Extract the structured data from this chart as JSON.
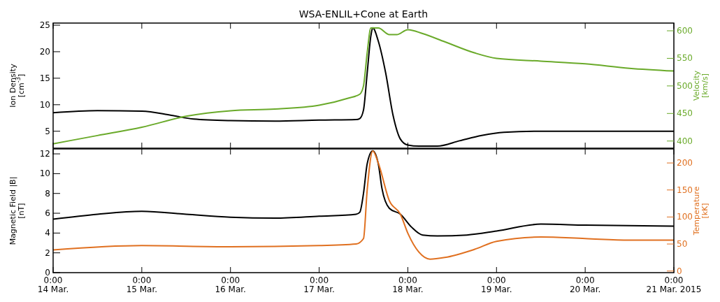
{
  "chart_data": [
    {
      "type": "line",
      "title": "WSA-ENLIL+Cone at Earth",
      "ylabel": "Ion Density\n[cm$^{-3}$]",
      "y2label": "Velocity\n[km/s]",
      "tick_labels": "y",
      "grid": false,
      "xlim": [
        "2015-03-14T00:00",
        "2015-03-21T00:00"
      ],
      "xticks": [
        {
          "value": "2015-03-14T00:00",
          "label": null
        },
        {
          "value": "2015-03-15T00:00",
          "label": null
        },
        {
          "value": "2015-03-16T00:00",
          "label": null
        },
        {
          "value": "2015-03-17T00:00",
          "label": null
        },
        {
          "value": "2015-03-18T00:00",
          "label": null
        },
        {
          "value": "2015-03-19T00:00",
          "label": null
        },
        {
          "value": "2015-03-20T00:00",
          "label": null
        },
        {
          "value": "2015-03-21T00:00",
          "label": null
        }
      ],
      "ylim": [
        1.8,
        25.4
      ],
      "yticks": [
        5,
        10,
        15,
        20,
        25
      ],
      "y2lim": [
        387,
        614
      ],
      "y2ticks": [
        400,
        450,
        500,
        550,
        600
      ],
      "series": [
        {
          "color": "#000000",
          "axis": "y",
          "x": [
            "2015-03-14T00:00",
            "2015-03-14T12:00",
            "2015-03-15T00:00",
            "2015-03-15T08:00",
            "2015-03-15T14:00",
            "2015-03-16T00:00",
            "2015-03-16T12:00",
            "2015-03-17T00:00",
            "2015-03-17T10:00",
            "2015-03-17T11:00",
            "2015-03-17T12:00",
            "2015-03-17T13:00",
            "2015-03-17T14:00",
            "2015-03-17T14:30",
            "2015-03-17T16:00",
            "2015-03-17T18:00",
            "2015-03-17T20:00",
            "2015-03-17T22:00",
            "2015-03-18T00:00",
            "2015-03-18T03:00",
            "2015-03-18T08:00",
            "2015-03-18T14:00",
            "2015-03-18T20:00",
            "2015-03-19T02:00",
            "2015-03-19T12:00",
            "2015-03-20T00:00",
            "2015-03-21T00:00"
          ],
          "values": [
            8.5,
            8.9,
            8.8,
            8.0,
            7.3,
            7.0,
            6.9,
            7.1,
            7.2,
            7.4,
            9,
            16,
            23,
            24.5,
            22,
            16,
            8,
            3.5,
            2.4,
            2.2,
            2.2,
            3.2,
            4.2,
            4.8,
            5.0,
            5.0,
            5.0
          ]
        },
        {
          "color": "#6aaa2a",
          "axis": "y2",
          "x": [
            "2015-03-14T00:00",
            "2015-03-14T12:00",
            "2015-03-15T00:00",
            "2015-03-15T12:00",
            "2015-03-16T00:00",
            "2015-03-16T12:00",
            "2015-03-17T00:00",
            "2015-03-17T08:00",
            "2015-03-17T11:00",
            "2015-03-17T12:00",
            "2015-03-17T13:00",
            "2015-03-17T14:00",
            "2015-03-17T16:00",
            "2015-03-17T19:00",
            "2015-03-17T21:00",
            "2015-03-18T00:00",
            "2015-03-18T04:00",
            "2015-03-18T10:00",
            "2015-03-18T18:00",
            "2015-03-19T00:00",
            "2015-03-19T12:00",
            "2015-03-20T00:00",
            "2015-03-20T12:00",
            "2015-03-21T00:00"
          ],
          "values": [
            395,
            410,
            425,
            445,
            455,
            458,
            465,
            478,
            485,
            500,
            560,
            605,
            605,
            593,
            593,
            602,
            595,
            580,
            560,
            550,
            545,
            540,
            532,
            527
          ]
        }
      ]
    },
    {
      "type": "line",
      "ylabel": "Magnetic Field |B|\n[nT]",
      "y2label": "Temperature\n[kK]",
      "grid": false,
      "xlim": [
        "2015-03-14T00:00",
        "2015-03-21T00:00"
      ],
      "xticks": [
        {
          "value": "2015-03-14T00:00",
          "label": "0:00\n14 Mar."
        },
        {
          "value": "2015-03-15T00:00",
          "label": "0:00\n15 Mar."
        },
        {
          "value": "2015-03-16T00:00",
          "label": "0:00\n16 Mar."
        },
        {
          "value": "2015-03-17T00:00",
          "label": "0:00\n17 Mar."
        },
        {
          "value": "2015-03-18T00:00",
          "label": "0:00\n18 Mar."
        },
        {
          "value": "2015-03-19T00:00",
          "label": "0:00\n19 Mar."
        },
        {
          "value": "2015-03-20T00:00",
          "label": "0:00\n20 Mar."
        },
        {
          "value": "2015-03-21T00:00",
          "label": "0:00\n21 Mar. 2015"
        }
      ],
      "ylim": [
        0,
        12.5
      ],
      "yticks": [
        0,
        2,
        4,
        6,
        8,
        10,
        12
      ],
      "y2lim": [
        -3,
        226
      ],
      "y2ticks": [
        0,
        50,
        100,
        150,
        200
      ],
      "series": [
        {
          "color": "#000000",
          "axis": "y",
          "x": [
            "2015-03-14T00:00",
            "2015-03-14T12:00",
            "2015-03-15T00:00",
            "2015-03-15T12:00",
            "2015-03-16T00:00",
            "2015-03-16T12:00",
            "2015-03-17T00:00",
            "2015-03-17T10:00",
            "2015-03-17T11:00",
            "2015-03-17T12:00",
            "2015-03-17T13:00",
            "2015-03-17T14:30",
            "2015-03-17T16:00",
            "2015-03-17T17:00",
            "2015-03-17T19:00",
            "2015-03-17T22:00",
            "2015-03-18T01:00",
            "2015-03-18T04:00",
            "2015-03-18T08:00",
            "2015-03-18T16:00",
            "2015-03-19T00:00",
            "2015-03-19T12:00",
            "2015-03-20T00:00",
            "2015-03-21T00:00"
          ],
          "values": [
            5.4,
            5.9,
            6.2,
            5.9,
            5.6,
            5.5,
            5.7,
            5.9,
            6.1,
            8,
            11,
            12.3,
            11,
            8.5,
            6.5,
            5.9,
            4.6,
            3.8,
            3.7,
            3.8,
            4.2,
            4.9,
            4.8,
            4.7
          ]
        },
        {
          "color": "#e07020",
          "axis": "y2",
          "x": [
            "2015-03-14T00:00",
            "2015-03-15T00:00",
            "2015-03-16T00:00",
            "2015-03-17T00:00",
            "2015-03-17T10:00",
            "2015-03-17T12:00",
            "2015-03-17T13:00",
            "2015-03-17T14:30",
            "2015-03-17T16:00",
            "2015-03-17T19:00",
            "2015-03-17T22:00",
            "2015-03-18T00:00",
            "2015-03-18T03:00",
            "2015-03-18T06:00",
            "2015-03-18T10:00",
            "2015-03-18T18:00",
            "2015-03-19T00:00",
            "2015-03-19T12:00",
            "2015-03-20T00:00",
            "2015-03-20T12:00",
            "2015-03-21T00:00"
          ],
          "values": [
            39,
            47,
            45,
            47,
            50,
            60,
            150,
            222,
            200,
            130,
            105,
            70,
            35,
            22,
            25,
            40,
            55,
            63,
            60,
            57,
            57
          ]
        }
      ]
    }
  ]
}
